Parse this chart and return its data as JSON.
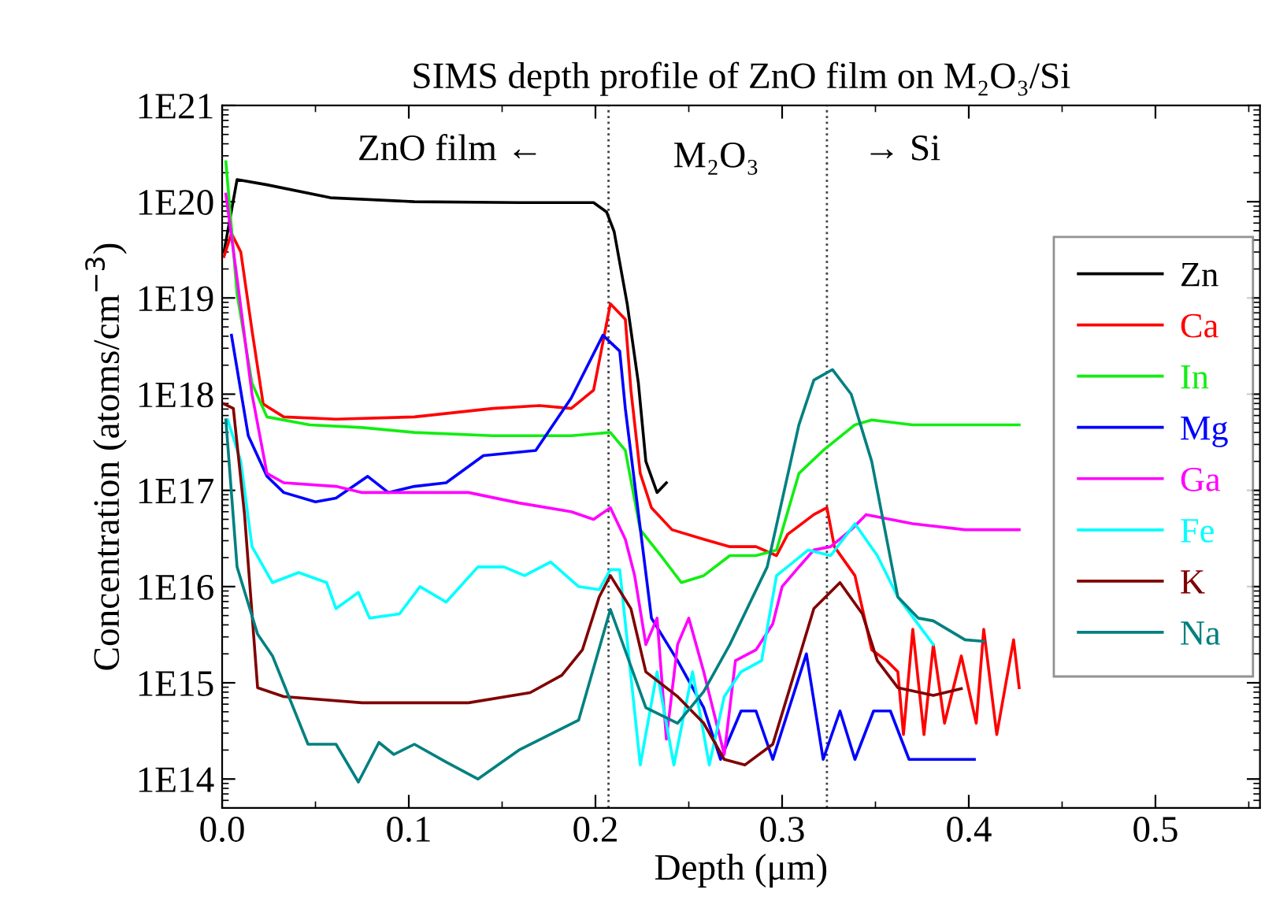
{
  "chart_data": {
    "type": "line",
    "title": "SIMS depth profile of ZnO film on M₂O₃/Si",
    "xlabel": "Depth (μm)",
    "ylabel": "Concentration (atoms/cm$^{−3}$)",
    "annotations": [
      "ZnO film ←",
      "M₂O₃",
      "→ Si"
    ],
    "log": "y",
    "xlim": [
      0,
      0.556
    ],
    "xticks": [
      {
        "value": 0,
        "label": "0.0"
      },
      0.1,
      0.2,
      0.3,
      0.4,
      0.5
    ],
    "ylim": [
      50000000000000.0,
      1e+21
    ],
    "yticks": [
      {
        "value": 100000000000000.0,
        "label": "1E14"
      },
      {
        "value": 1000000000000000.0,
        "label": "1E15"
      },
      {
        "value": 1e+16,
        "label": "1E16"
      },
      {
        "value": 1e+17,
        "label": "1E17"
      },
      {
        "value": 1e+18,
        "label": "1E18"
      },
      {
        "value": 1e+19,
        "label": "1E19"
      },
      {
        "value": 1e+20,
        "label": "1E20"
      },
      {
        "value": 1e+21,
        "label": "1E21"
      }
    ],
    "grid": false,
    "legend": "right",
    "marker": "none",
    "line_style": "solid",
    "ref_lines": [
      {
        "axis": "x",
        "value": 0.207,
        "line_style": "dotted",
        "color": "#444444"
      },
      {
        "axis": "x",
        "value": 0.324,
        "line_style": "dotted",
        "color": "#444444"
      }
    ],
    "series": [
      {
        "name": "Zn",
        "color": "#000000",
        "x": [
          0.001,
          0.008,
          0.024,
          0.058,
          0.103,
          0.159,
          0.199,
          0.206,
          0.21,
          0.217,
          0.223,
          0.227,
          0.233,
          0.238
        ],
        "values": [
          3e+19,
          1.7e+20,
          1.5e+20,
          1.1e+20,
          1e+20,
          9.8e+19,
          9.8e+19,
          7.8e+19,
          4.9e+19,
          8.7e+18,
          1.3e+18,
          2e+17,
          9.5e+16,
          1.2e+17
        ]
      },
      {
        "name": "Ca",
        "color": "#ff0000",
        "x": [
          0.001,
          0.005,
          0.01,
          0.016,
          0.022,
          0.033,
          0.061,
          0.103,
          0.145,
          0.17,
          0.187,
          0.199,
          0.208,
          0.216,
          0.219,
          0.224,
          0.23,
          0.241,
          0.258,
          0.272,
          0.286,
          0.297,
          0.303,
          0.317,
          0.324,
          0.328,
          0.339,
          0.348,
          0.356,
          0.362,
          0.365,
          0.37,
          0.376,
          0.381,
          0.387,
          0.396,
          0.404,
          0.408,
          0.415,
          0.424,
          0.427
        ],
        "values": [
          2.7e+19,
          4.7e+19,
          3e+19,
          4.6e+18,
          7.9e+17,
          5.8e+17,
          5.5e+17,
          5.8e+17,
          7.1e+17,
          7.6e+17,
          7.1e+17,
          1.1e+18,
          8.7e+18,
          6e+18,
          1.1e+18,
          1.5e+17,
          6.6e+16,
          3.9e+16,
          3.1e+16,
          2.6e+16,
          2.6e+16,
          2.1e+16,
          3.5e+16,
          5.6e+16,
          6.6e+16,
          2.6e+16,
          1.3e+16,
          2200000000000000.0,
          1700000000000000.0,
          1300000000000000.0,
          290000000000000.0,
          3600000000000000.0,
          290000000000000.0,
          2500000000000000.0,
          380000000000000.0,
          1900000000000000.0,
          380000000000000.0,
          3600000000000000.0,
          290000000000000.0,
          2800000000000000.0,
          890000000000000.0
        ]
      },
      {
        "name": "In",
        "color": "#11ee11",
        "x": [
          0.002,
          0.008,
          0.016,
          0.024,
          0.047,
          0.075,
          0.103,
          0.145,
          0.187,
          0.208,
          0.216,
          0.224,
          0.235,
          0.246,
          0.258,
          0.272,
          0.286,
          0.297,
          0.309,
          0.322,
          0.339,
          0.348,
          0.37,
          0.398,
          0.427
        ],
        "values": [
          2.6e+20,
          1.1e+19,
          1.3e+18,
          5.8e+17,
          4.8e+17,
          4.5e+17,
          4e+17,
          3.7e+17,
          3.7e+17,
          4e+17,
          2.6e+17,
          3.9e+16,
          2.1e+16,
          1.1e+16,
          1.3e+16,
          2.1e+16,
          2.1e+16,
          2.4e+16,
          1.5e+17,
          2.6e+17,
          4.8e+17,
          5.4e+17,
          4.8e+17,
          4.8e+17,
          4.8e+17
        ]
      },
      {
        "name": "Mg",
        "color": "#0000ff",
        "x": [
          0.005,
          0.014,
          0.024,
          0.033,
          0.05,
          0.061,
          0.078,
          0.089,
          0.103,
          0.12,
          0.14,
          0.168,
          0.187,
          0.204,
          0.213,
          0.216,
          0.23,
          0.244,
          0.258,
          0.267,
          0.278,
          0.286,
          0.295,
          0.313,
          0.322,
          0.331,
          0.339,
          0.349,
          0.358,
          0.368,
          0.403
        ],
        "values": [
          4.1e+18,
          3.7e+17,
          1.4e+17,
          9.5e+16,
          7.6e+16,
          8.3e+16,
          1.4e+17,
          9.5e+16,
          1.1e+17,
          1.2e+17,
          2.3e+17,
          2.6e+17,
          9.1e+17,
          4.1e+18,
          2.8e+18,
          7.1e+17,
          4700000000000000.0,
          1700000000000000.0,
          550000000000000.0,
          160000000000000.0,
          510000000000000.0,
          510000000000000.0,
          160000000000000.0,
          2000000000000000.0,
          160000000000000.0,
          510000000000000.0,
          160000000000000.0,
          510000000000000.0,
          510000000000000.0,
          160000000000000.0,
          160000000000000.0
        ]
      },
      {
        "name": "Ga",
        "color": "#ff00ff",
        "x": [
          0.002,
          0.008,
          0.016,
          0.024,
          0.033,
          0.061,
          0.075,
          0.103,
          0.132,
          0.159,
          0.187,
          0.199,
          0.208,
          0.216,
          0.221,
          0.227,
          0.233,
          0.238,
          0.244,
          0.25,
          0.258,
          0.269,
          0.275,
          0.286,
          0.295,
          0.3,
          0.309,
          0.317,
          0.326,
          0.337,
          0.345,
          0.37,
          0.398,
          0.427
        ],
        "values": [
          1.2e+20,
          1.6e+19,
          1e+18,
          1.5e+17,
          1.2e+17,
          1.1e+17,
          9.5e+16,
          9.5e+16,
          9.5e+16,
          7.4e+16,
          6e+16,
          5e+16,
          6.6e+16,
          3.1e+16,
          1.3e+16,
          2500000000000000.0,
          4700000000000000.0,
          260000000000000.0,
          2500000000000000.0,
          4700000000000000.0,
          1300000000000000.0,
          180000000000000.0,
          1700000000000000.0,
          2200000000000000.0,
          4100000000000000.0,
          1e+16,
          1.6e+16,
          2.4e+16,
          2.6e+16,
          3.9e+16,
          5.6e+16,
          4.5e+16,
          3.9e+16,
          3.9e+16
        ]
      },
      {
        "name": "Fe",
        "color": "#00ffff",
        "x": [
          0.003,
          0.01,
          0.016,
          0.027,
          0.041,
          0.056,
          0.061,
          0.073,
          0.079,
          0.095,
          0.106,
          0.12,
          0.137,
          0.151,
          0.162,
          0.176,
          0.191,
          0.202,
          0.208,
          0.213,
          0.224,
          0.233,
          0.242,
          0.252,
          0.261,
          0.269,
          0.278,
          0.289,
          0.297,
          0.314,
          0.326,
          0.339,
          0.351,
          0.362,
          0.381
        ],
        "values": [
          5.4e+17,
          2e+17,
          2.6e+16,
          1.1e+16,
          1.4e+16,
          1.1e+16,
          5900000000000000.0,
          8700000000000000.0,
          4700000000000000.0,
          5200000000000000.0,
          1e+16,
          6900000000000000.0,
          1.6e+16,
          1.6e+16,
          1.3e+16,
          1.8e+16,
          1e+16,
          9300000000000000.0,
          1.5e+16,
          1.5e+16,
          140000000000000.0,
          1300000000000000.0,
          140000000000000.0,
          1300000000000000.0,
          140000000000000.0,
          720000000000000.0,
          1300000000000000.0,
          1700000000000000.0,
          1.3e+16,
          2.4e+16,
          2.1e+16,
          4.5e+16,
          2.1e+16,
          7800000000000000.0,
          2500000000000000.0
        ]
      },
      {
        "name": "K",
        "color": "#800000",
        "x": [
          0.001,
          0.006,
          0.012,
          0.019,
          0.033,
          0.075,
          0.132,
          0.165,
          0.182,
          0.193,
          0.202,
          0.208,
          0.219,
          0.227,
          0.244,
          0.258,
          0.269,
          0.28,
          0.295,
          0.305,
          0.317,
          0.331,
          0.343,
          0.351,
          0.362,
          0.381,
          0.396
        ],
        "values": [
          7.9e+17,
          7.1e+17,
          5.6e+16,
          890000000000000.0,
          720000000000000.0,
          620000000000000.0,
          620000000000000.0,
          790000000000000.0,
          1200000000000000.0,
          2200000000000000.0,
          7800000000000000.0,
          1.3e+16,
          5900000000000000.0,
          1300000000000000.0,
          720000000000000.0,
          380000000000000.0,
          160000000000000.0,
          140000000000000.0,
          230000000000000.0,
          1000000000000000.0,
          5900000000000000.0,
          1.1e+16,
          5200000000000000.0,
          1700000000000000.0,
          890000000000000.0,
          740000000000000.0,
          870000000000000.0
        ]
      },
      {
        "name": "Na",
        "color": "#008080",
        "x": [
          0.002,
          0.008,
          0.019,
          0.027,
          0.046,
          0.061,
          0.073,
          0.084,
          0.092,
          0.103,
          0.12,
          0.137,
          0.159,
          0.191,
          0.208,
          0.227,
          0.244,
          0.258,
          0.272,
          0.292,
          0.309,
          0.317,
          0.327,
          0.337,
          0.348,
          0.362,
          0.373,
          0.381,
          0.398,
          0.408
        ],
        "values": [
          5.4e+17,
          1.6e+16,
          3200000000000000.0,
          1900000000000000.0,
          230000000000000.0,
          230000000000000.0,
          93000000000000.0,
          240000000000000.0,
          180000000000000.0,
          230000000000000.0,
          150000000000000.0,
          100000000000000.0,
          200000000000000.0,
          410000000000000.0,
          5800000000000000.0,
          550000000000000.0,
          380000000000000.0,
          810000000000000.0,
          2500000000000000.0,
          1.6e+16,
          4.8e+17,
          1.4e+18,
          1.8e+18,
          1e+18,
          2e+17,
          7800000000000000.0,
          4700000000000000.0,
          4400000000000000.0,
          2800000000000000.0,
          2700000000000000.0
        ]
      }
    ]
  }
}
